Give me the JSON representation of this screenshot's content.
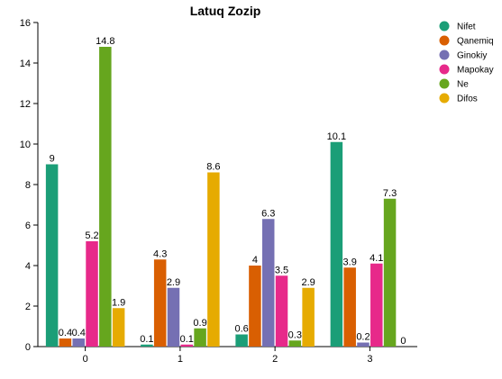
{
  "chart_data": {
    "type": "bar",
    "title": "Latuq Zozip",
    "xlabel": "",
    "ylabel": "",
    "categories": [
      "0",
      "1",
      "2",
      "3"
    ],
    "ylim": [
      0,
      16
    ],
    "yticks": [
      "0",
      "2",
      "4",
      "6",
      "8",
      "10",
      "12",
      "14",
      "16"
    ],
    "grid": false,
    "legend_position": "top-right",
    "series": [
      {
        "name": "Nifet",
        "color": "#1b9e77",
        "values": [
          9,
          0.1,
          0.6,
          10.1
        ],
        "labels": [
          "9",
          "0.1",
          "0.6",
          "10.1"
        ]
      },
      {
        "name": "Qanemiq",
        "color": "#d95f02",
        "values": [
          0.4,
          4.3,
          4,
          3.9
        ],
        "labels": [
          "0.4",
          "4.3",
          "4",
          "3.9"
        ]
      },
      {
        "name": "Ginokiy",
        "color": "#7570b3",
        "values": [
          0.4,
          2.9,
          6.3,
          0.2
        ],
        "labels": [
          "0.4",
          "2.9",
          "6.3",
          "0.2"
        ]
      },
      {
        "name": "Mapokay",
        "color": "#e7298a",
        "values": [
          5.2,
          0.1,
          3.5,
          4.1
        ],
        "labels": [
          "5.2",
          "0.1",
          "3.5",
          "4.1"
        ]
      },
      {
        "name": "Ne",
        "color": "#66a61e",
        "values": [
          14.8,
          0.9,
          0.3,
          7.3
        ],
        "labels": [
          "14.8",
          "0.9",
          "0.3",
          "7.3"
        ]
      },
      {
        "name": "Difos",
        "color": "#e6ab02",
        "values": [
          1.9,
          8.6,
          2.9,
          0
        ],
        "labels": [
          "1.9",
          "8.6",
          "2.9",
          "0"
        ]
      }
    ]
  }
}
